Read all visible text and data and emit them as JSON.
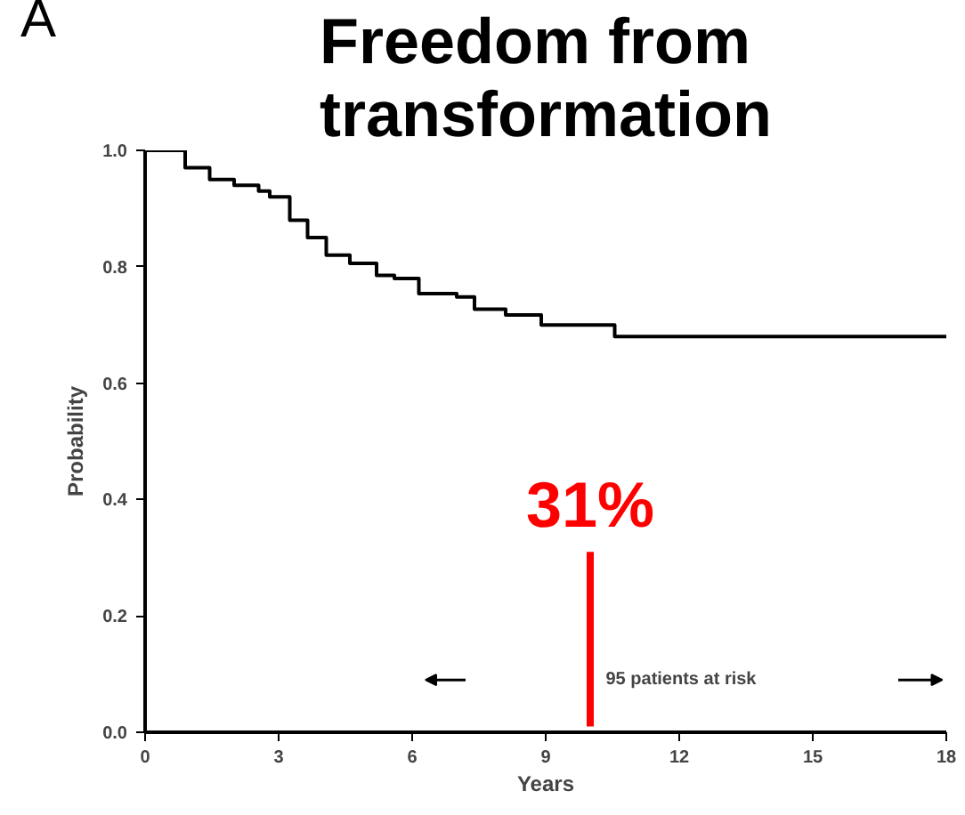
{
  "chart_data": {
    "type": "step",
    "title": "Freedom from transformation",
    "xlabel": "Years",
    "ylabel": "Probability",
    "x": [
      0,
      0.9,
      1.45,
      2.0,
      2.55,
      2.8,
      3.25,
      3.65,
      4.07,
      4.6,
      5.2,
      5.6,
      6.15,
      7.0,
      7.4,
      8.1,
      8.9,
      10.55,
      18
    ],
    "series": [
      {
        "color": "#000000",
        "values": [
          1.0,
          0.97,
          0.95,
          0.94,
          0.93,
          0.92,
          0.88,
          0.85,
          0.82,
          0.806,
          0.785,
          0.78,
          0.754,
          0.748,
          0.727,
          0.717,
          0.7,
          0.68,
          0.68
        ]
      },
      {
        "type": "line",
        "color": "#ff0000",
        "x": [
          10,
          10
        ],
        "values": [
          0.01,
          0.31
        ]
      }
    ],
    "annotations": [
      "A",
      {
        "text": "31%",
        "x": 10,
        "y": 0.31
      },
      "95 patients at risk"
    ],
    "xlim": [
      0,
      18
    ],
    "ylim": [
      0,
      1.0
    ],
    "xticks": [
      0,
      3,
      6,
      9,
      12,
      15,
      18
    ],
    "yticks": [
      {
        "value": 0,
        "label": "0.0"
      },
      {
        "value": 0.2,
        "label": "0.2"
      },
      {
        "value": 0.4,
        "label": "0.4"
      },
      {
        "value": 0.6,
        "label": "0.6"
      },
      {
        "value": 0.8,
        "label": "0.8"
      },
      {
        "value": 1.0,
        "label": "1.0"
      }
    ],
    "grid": false,
    "marker": "none",
    "line_style": "solid"
  }
}
